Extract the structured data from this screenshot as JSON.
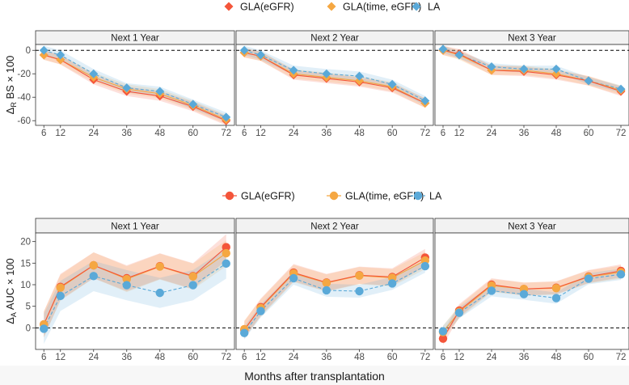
{
  "x_axis_title": "Months after transplantation",
  "legends": {
    "top": [
      "GLA(eGFR)",
      "GLA(time, eGFR)",
      "LA"
    ],
    "bottom": [
      "GLA(eGFR)",
      "GLA(time, eGFR)",
      "LA"
    ]
  },
  "colors": {
    "gla_egfr": "#f4553a",
    "gla_time_egfr": "#f5a742",
    "la": "#5aa9d8"
  },
  "chart_data": [
    {
      "type": "line",
      "ylabel_main": "Δ",
      "ylabel_sub": "R",
      "ylabel_rest": " BS × 100",
      "x": [
        6,
        12,
        24,
        36,
        48,
        60,
        72
      ],
      "xticks": [
        "6",
        "12",
        "24",
        "36",
        "48",
        "60",
        "72"
      ],
      "ylim": [
        -64,
        5
      ],
      "yticks": [
        0,
        -20,
        -40,
        -60
      ],
      "reference_line": 0,
      "panels": [
        {
          "title": "Next 1 Year",
          "series": [
            {
              "name": "GLA(eGFR)",
              "values": [
                -4,
                -8,
                -25,
                -35,
                -39,
                -48,
                -60
              ],
              "band": 4
            },
            {
              "name": "GLA(time, eGFR)",
              "values": [
                -4,
                -8,
                -23,
                -33,
                -37,
                -47,
                -59
              ],
              "band": 4
            },
            {
              "name": "LA",
              "values": [
                0,
                -4,
                -20,
                -32,
                -35,
                -46,
                -57
              ],
              "band": 4
            }
          ]
        },
        {
          "title": "Next 2 Year",
          "series": [
            {
              "name": "GLA(eGFR)",
              "values": [
                -2,
                -5,
                -21,
                -24,
                -27,
                -32,
                -45
              ],
              "band": 4
            },
            {
              "name": "GLA(time, eGFR)",
              "values": [
                -2,
                -5,
                -20,
                -23,
                -26,
                -31,
                -45
              ],
              "band": 4
            },
            {
              "name": "LA",
              "values": [
                0,
                -4,
                -17,
                -20,
                -22,
                -29,
                -43
              ],
              "band": 4
            }
          ]
        },
        {
          "title": "Next 3 Year",
          "series": [
            {
              "name": "GLA(eGFR)",
              "values": [
                0,
                -3,
                -17,
                -18,
                -21,
                -26,
                -35
              ],
              "band": 4
            },
            {
              "name": "GLA(time, eGFR)",
              "values": [
                0,
                -4,
                -17,
                -17,
                -20,
                -26,
                -34
              ],
              "band": 4
            },
            {
              "name": "LA",
              "values": [
                1,
                -4,
                -14,
                -16,
                -16,
                -26,
                -33
              ],
              "band": 3
            }
          ]
        }
      ]
    },
    {
      "type": "line",
      "ylabel_main": "Δ",
      "ylabel_sub": "A",
      "ylabel_rest": " AUC × 100",
      "x": [
        6,
        12,
        24,
        36,
        48,
        60,
        72
      ],
      "xticks": [
        "6",
        "12",
        "24",
        "36",
        "48",
        "60",
        "72"
      ],
      "ylim": [
        -5,
        22
      ],
      "yticks": [
        20,
        15,
        10,
        5,
        0
      ],
      "reference_line": 0,
      "panels": [
        {
          "title": "Next 1 Year",
          "series": [
            {
              "name": "GLA(eGFR)",
              "values": [
                0.8,
                9.5,
                14.5,
                11.5,
                14.3,
                12,
                18.7
              ],
              "band": 3
            },
            {
              "name": "GLA(time, eGFR)",
              "values": [
                0.8,
                9.3,
                14.5,
                11.3,
                14.2,
                11.9,
                17.3
              ],
              "band": 3
            },
            {
              "name": "LA",
              "values": [
                -0.2,
                7.4,
                12,
                9.9,
                8.1,
                9.9,
                14.9
              ],
              "band": 3.5
            }
          ]
        },
        {
          "title": "Next 2 Year",
          "series": [
            {
              "name": "GLA(eGFR)",
              "values": [
                -0.5,
                4.8,
                12.8,
                10.5,
                12.2,
                11.8,
                16.3
              ],
              "band": 2
            },
            {
              "name": "GLA(time, eGFR)",
              "values": [
                -0.3,
                4.6,
                12.6,
                10.4,
                12.1,
                11.6,
                15.6
              ],
              "band": 2
            },
            {
              "name": "LA",
              "values": [
                -1.2,
                3.9,
                11.5,
                8.7,
                8.5,
                10.3,
                14.3
              ],
              "band": 1.5
            }
          ]
        },
        {
          "title": "Next 3 Year",
          "series": [
            {
              "name": "GLA(eGFR)",
              "values": [
                -2.5,
                4,
                10,
                9,
                9.3,
                11.9,
                13.2
              ],
              "band": 1.5
            },
            {
              "name": "GLA(time, eGFR)",
              "values": [
                -1,
                3.7,
                9.8,
                9,
                9.2,
                11.8,
                12.9
              ],
              "band": 1.5
            },
            {
              "name": "LA",
              "values": [
                -0.8,
                3.5,
                8.6,
                7.8,
                6.9,
                11.4,
                12.4
              ],
              "band": 1.3
            }
          ]
        }
      ]
    }
  ]
}
